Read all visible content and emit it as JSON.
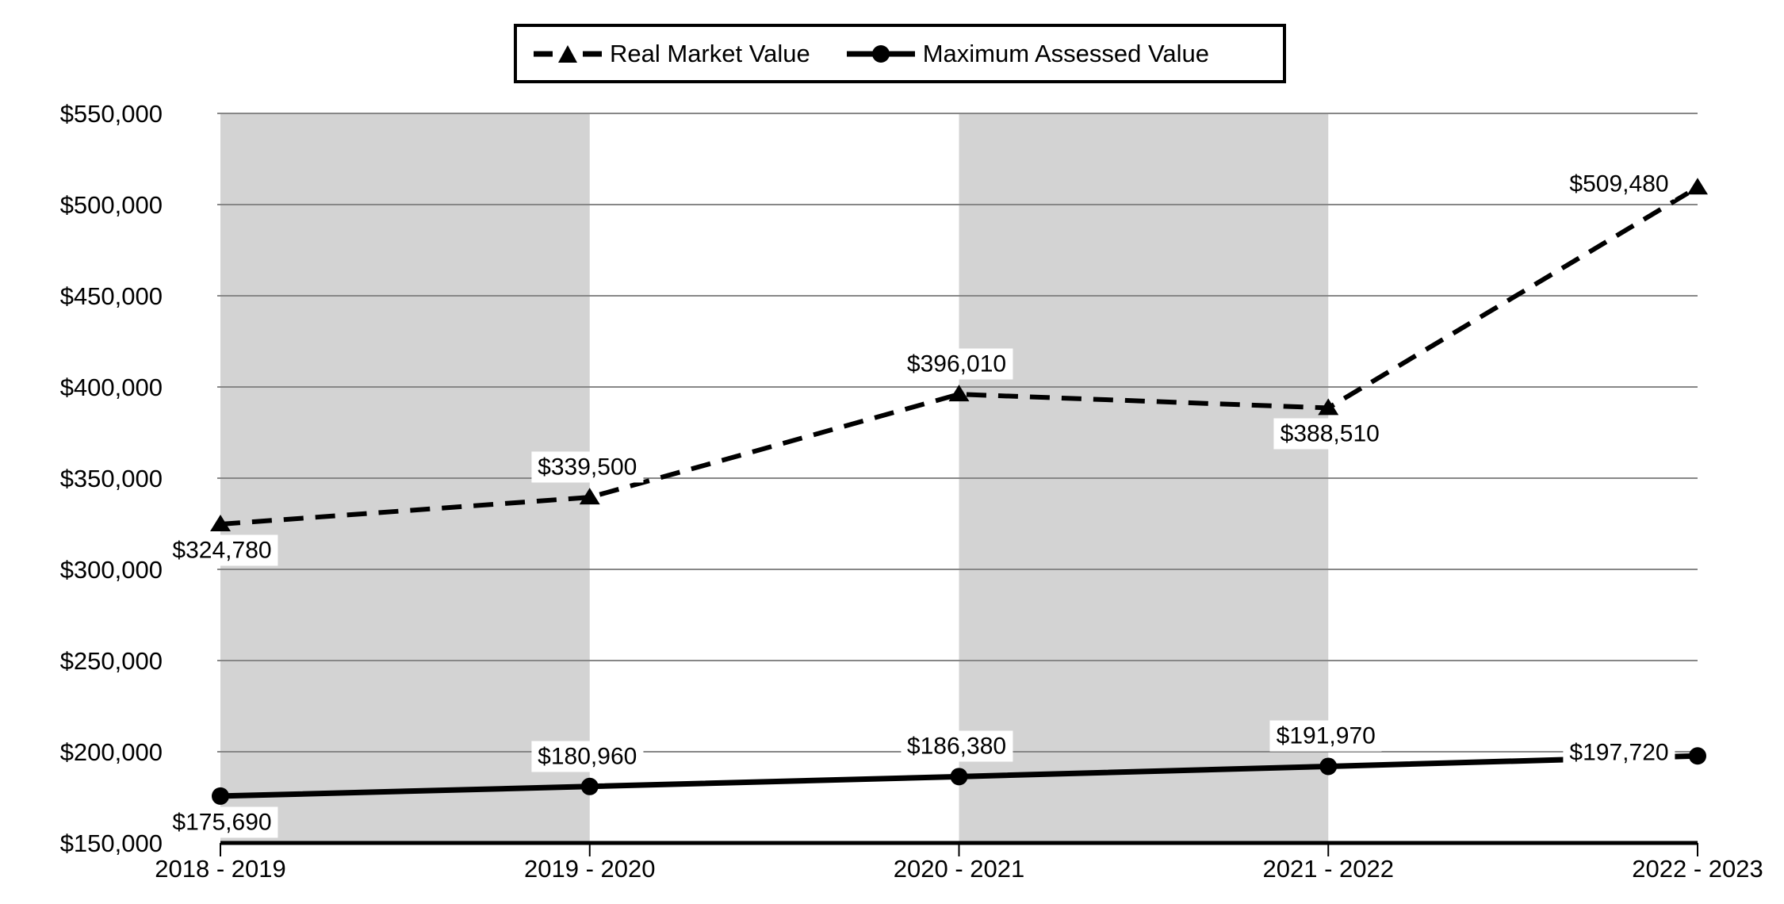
{
  "legend": {
    "items": [
      {
        "label": "Real Market Value",
        "marker": "dashed-line-triangle"
      },
      {
        "label": "Maximum Assessed Value",
        "marker": "solid-line-circle"
      }
    ]
  },
  "chart_data": {
    "type": "line",
    "categories": [
      "2018 - 2019",
      "2019 - 2020",
      "2020 - 2021",
      "2021 - 2022",
      "2022 - 2023"
    ],
    "series": [
      {
        "name": "Real Market Value",
        "line_style": "dashed",
        "marker": "triangle",
        "values": [
          324780,
          339500,
          396010,
          388510,
          509480
        ],
        "labels": [
          "$324,780",
          "$339,500",
          "$396,010",
          "$388,510",
          "$509,480"
        ],
        "label_positions": [
          "below",
          "above",
          "above",
          "below",
          "left"
        ]
      },
      {
        "name": "Maximum Assessed Value",
        "line_style": "solid",
        "marker": "circle",
        "values": [
          175690,
          180960,
          186380,
          191970,
          197720
        ],
        "labels": [
          "$175,690",
          "$180,960",
          "$186,380",
          "$191,970",
          "$197,720"
        ],
        "label_positions": [
          "below",
          "above",
          "above",
          "above",
          "left"
        ]
      }
    ],
    "y_axis": {
      "min": 150000,
      "max": 550000,
      "step": 50000,
      "tick_labels": [
        "$150,000",
        "$200,000",
        "$250,000",
        "$300,000",
        "$350,000",
        "$400,000",
        "$450,000",
        "$500,000",
        "$550,000"
      ]
    },
    "x_axis": {
      "tick_labels": [
        "2018 - 2019",
        "2019 - 2020",
        "2020 - 2021",
        "2021 - 2022",
        "2022 - 2023"
      ]
    },
    "shaded_bands": [
      [
        0,
        1
      ],
      [
        2,
        3
      ]
    ],
    "grid": true,
    "legend_position": "top",
    "colors": {
      "series": "#000000",
      "band": "#d3d3d3",
      "gridline": "#878787",
      "axis": "#000000",
      "label_background": "#ffffff",
      "background": "#ffffff"
    }
  }
}
